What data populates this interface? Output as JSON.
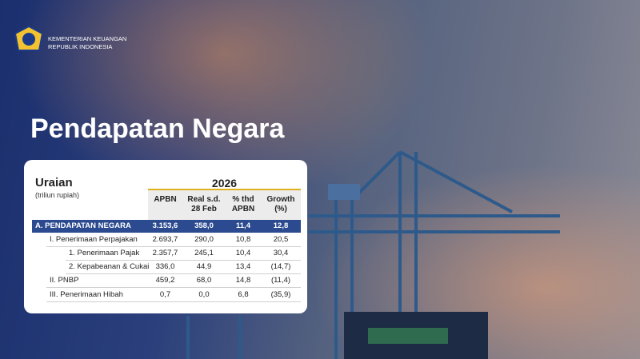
{
  "header": {
    "org_line1": "KEMENTERIAN KEUANGAN",
    "org_line2": "REPUBLIK INDONESIA"
  },
  "title": "Pendapatan Negara",
  "table": {
    "label_header": "Uraian",
    "unit": "(triliun rupiah)",
    "year": "2026",
    "columns": [
      "APBN",
      "Real s.d. 28 Feb",
      "% thd APBN",
      "Growth (%)"
    ],
    "rows": [
      [
        "A. PENDAPATAN NEGARA",
        "3.153,6",
        "358,0",
        "11,4",
        "12,8"
      ],
      [
        "I. Penerimaan Perpajakan",
        "2.693,7",
        "290,0",
        "10,8",
        "20,5"
      ],
      [
        "1. Penerimaan Pajak",
        "2.357,7",
        "245,1",
        "10,4",
        "30,4"
      ],
      [
        "2. Kepabeanan & Cukai",
        "336,0",
        "44,9",
        "13,4",
        "(14,7)"
      ],
      [
        "II. PNBP",
        "459,2",
        "68,0",
        "14,8",
        "(11,4)"
      ],
      [
        "III. Penerimaan Hibah",
        "0,7",
        "0,0",
        "6,8",
        "(35,9)"
      ]
    ]
  }
}
